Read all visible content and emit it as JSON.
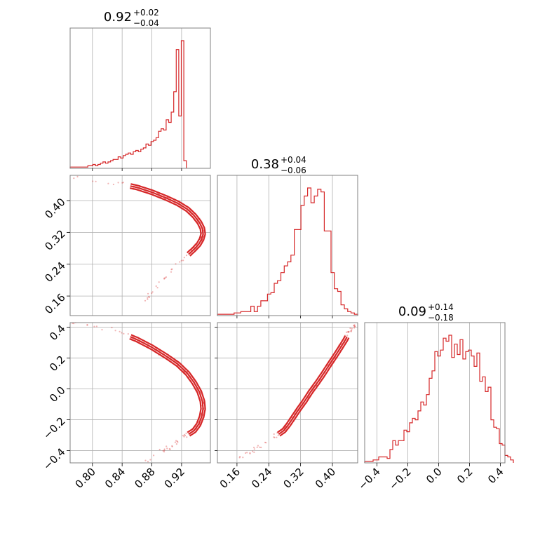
{
  "chart_data": {
    "type": "corner",
    "color": "#d62728",
    "parameters": [
      {
        "title_value": "0.92",
        "title_plus": "+0.02",
        "title_minus": "−0.04",
        "range": [
          0.77,
          0.9588
        ],
        "ticks": [
          0.8,
          0.84,
          0.88,
          0.92
        ],
        "tick_labels": [
          "0.80",
          "0.84",
          "0.88",
          "0.92"
        ],
        "hist_step": 0.0034,
        "hist_values": [
          0.01,
          0.01,
          0.01,
          0.01,
          0.01,
          0.01,
          0.01,
          0.02,
          0.02,
          0.03,
          0.02,
          0.03,
          0.04,
          0.05,
          0.04,
          0.05,
          0.06,
          0.07,
          0.07,
          0.09,
          0.08,
          0.1,
          0.11,
          0.12,
          0.11,
          0.13,
          0.14,
          0.13,
          0.15,
          0.16,
          0.19,
          0.18,
          0.21,
          0.22,
          0.24,
          0.29,
          0.31,
          0.3,
          0.38,
          0.36,
          0.44,
          0.6,
          0.93,
          0.41,
          1.0,
          0.06
        ]
      },
      {
        "title_value": "0.38",
        "title_plus": "+0.04",
        "title_minus": "−0.06",
        "range": [
          0.1108,
          0.4635
        ],
        "ticks": [
          0.16,
          0.24,
          0.32,
          0.4
        ],
        "tick_labels": [
          "0.16",
          "0.24",
          "0.32",
          "0.40"
        ],
        "hist_step": 0.0084,
        "hist_values": [
          0.01,
          0.01,
          0.01,
          0.01,
          0.01,
          0.02,
          0.02,
          0.03,
          0.03,
          0.03,
          0.07,
          0.03,
          0.07,
          0.11,
          0.11,
          0.16,
          0.17,
          0.24,
          0.26,
          0.32,
          0.37,
          0.4,
          0.45,
          0.64,
          0.64,
          0.82,
          0.89,
          0.95,
          0.84,
          0.89,
          0.94,
          0.92,
          0.63,
          0.63,
          0.32,
          0.2,
          0.18,
          0.08,
          0.05,
          0.03,
          0.02,
          0.01
        ]
      },
      {
        "title_value": "0.09",
        "title_plus": "+0.14",
        "title_minus": "−0.18",
        "range": [
          -0.48,
          0.43
        ],
        "ticks": [
          -0.4,
          -0.2,
          0.0,
          0.2,
          0.4
        ],
        "tick_labels": [
          "−0.4",
          "−0.2",
          "0.0",
          "0.2",
          "0.4"
        ],
        "hist_step": 0.0182,
        "hist_values": [
          0.01,
          0.01,
          0.01,
          0.02,
          0.02,
          0.04,
          0.04,
          0.04,
          0.03,
          0.09,
          0.15,
          0.12,
          0.15,
          0.15,
          0.22,
          0.21,
          0.27,
          0.3,
          0.29,
          0.35,
          0.41,
          0.39,
          0.46,
          0.57,
          0.62,
          0.75,
          0.72,
          0.76,
          0.84,
          0.82,
          0.86,
          0.71,
          0.8,
          0.73,
          0.83,
          0.7,
          0.75,
          0.76,
          0.72,
          0.65,
          0.74,
          0.55,
          0.58,
          0.48,
          0.51,
          0.29,
          0.24,
          0.23,
          0.13,
          0.12,
          0.05,
          0.04,
          0.02
        ]
      }
    ],
    "joint_curve": [
      {
        "p0": 0.77,
        "p1": 0.46,
        "p2": 0.43
      },
      {
        "p0": 0.83,
        "p1": 0.445,
        "p2": 0.38
      },
      {
        "p0": 0.86,
        "p1": 0.433,
        "p2": 0.32
      },
      {
        "p0": 0.88,
        "p1": 0.421,
        "p2": 0.27
      },
      {
        "p0": 0.9,
        "p1": 0.406,
        "p2": 0.21
      },
      {
        "p0": 0.915,
        "p1": 0.393,
        "p2": 0.16
      },
      {
        "p0": 0.928,
        "p1": 0.378,
        "p2": 0.1
      },
      {
        "p0": 0.937,
        "p1": 0.362,
        "p2": 0.04
      },
      {
        "p0": 0.944,
        "p1": 0.345,
        "p2": -0.02
      },
      {
        "p0": 0.948,
        "p1": 0.33,
        "p2": -0.08
      },
      {
        "p0": 0.949,
        "p1": 0.316,
        "p2": -0.13
      },
      {
        "p0": 0.947,
        "p1": 0.303,
        "p2": -0.18
      },
      {
        "p0": 0.943,
        "p1": 0.29,
        "p2": -0.23
      },
      {
        "p0": 0.937,
        "p1": 0.278,
        "p2": -0.27
      },
      {
        "p0": 0.918,
        "p1": 0.245,
        "p2": -0.33
      },
      {
        "p0": 0.895,
        "p1": 0.2,
        "p2": -0.4
      },
      {
        "p0": 0.87,
        "p1": 0.15,
        "p2": -0.47
      }
    ],
    "grid": true,
    "layout": "lower-triangle 3x3"
  }
}
